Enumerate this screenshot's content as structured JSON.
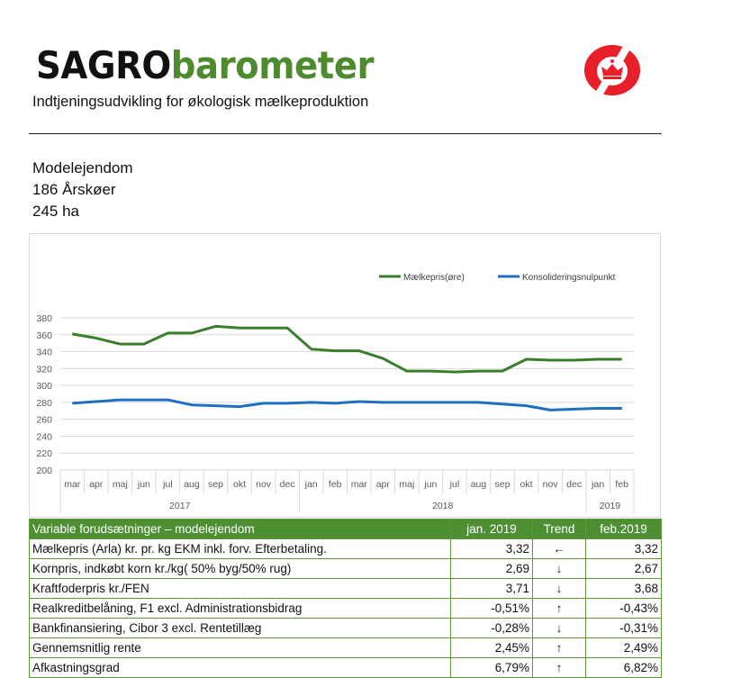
{
  "header": {
    "brand_part1": "SAGRO",
    "brand_part2": "barometer",
    "subtitle": "Indtjeningsudvikling for økologisk mælkeproduktion",
    "logo": "crown-s-logo"
  },
  "farm": {
    "name": "Modelejendom",
    "cows": "186 Årskøer",
    "area": "245 ha"
  },
  "colors": {
    "green": "#3a7d2c",
    "blue": "#1f6fc0",
    "header_green": "#4e8f33",
    "logo_red": "#e8202a"
  },
  "chart_data": {
    "type": "line",
    "title": "",
    "categories": [
      "mar",
      "apr",
      "maj",
      "jun",
      "jul",
      "aug",
      "sep",
      "okt",
      "nov",
      "dec",
      "jan",
      "feb",
      "mar",
      "apr",
      "maj",
      "jun",
      "jul",
      "aug",
      "sep",
      "okt",
      "nov",
      "dec",
      "jan",
      "feb"
    ],
    "years": [
      {
        "label": "2017",
        "span": 10
      },
      {
        "label": "2018",
        "span": 12
      },
      {
        "label": "2019",
        "span": 2
      }
    ],
    "ylim": [
      200,
      380
    ],
    "yticks": [
      "200",
      "220",
      "240",
      "260",
      "280",
      "300",
      "320",
      "340",
      "360",
      "380"
    ],
    "legend_position": "top-right",
    "series": [
      {
        "name": "Mælkepris(øre)",
        "color": "#3a7d2c",
        "values": [
          361,
          356,
          349,
          349,
          362,
          362,
          370,
          368,
          368,
          368,
          343,
          341,
          341,
          332,
          317,
          317,
          316,
          317,
          317,
          331,
          330,
          330,
          331,
          331
        ]
      },
      {
        "name": "Konsolideringsnulpunkt",
        "color": "#1f6fc0",
        "values": [
          279,
          281,
          283,
          283,
          283,
          277,
          276,
          275,
          279,
          279,
          280,
          279,
          281,
          280,
          280,
          280,
          280,
          280,
          278,
          276,
          271,
          272,
          273,
          273
        ]
      }
    ]
  },
  "table": {
    "headers": [
      "Variable forudsætninger – modelejendom",
      "jan. 2019",
      "Trend",
      "feb.2019"
    ],
    "rows": [
      [
        "Mælkepris (Arla) kr. pr. kg EKM inkl. forv. Efterbetaling.",
        "3,32",
        "←",
        "3,32"
      ],
      [
        "Kornpris, indkøbt korn kr./kg( 50% byg/50% rug)",
        "2,69",
        "↓",
        "2,67"
      ],
      [
        "Kraftfoderpris kr./FEN",
        "3,71",
        "↓",
        "3,68"
      ],
      [
        "Realkreditbelåning, F1 excl. Administrationsbidrag",
        "-0,51%",
        "↑",
        "-0,43%"
      ],
      [
        "Bankfinansiering, Cibor 3 excl. Rentetillæg",
        "-0,28%",
        "↓",
        "-0,31%"
      ],
      [
        "Gennemsnitlig rente",
        "2,45%",
        "↑",
        "2,49%"
      ],
      [
        "Afkastningsgrad",
        "6,79%",
        "↑",
        "6,82%"
      ]
    ]
  }
}
